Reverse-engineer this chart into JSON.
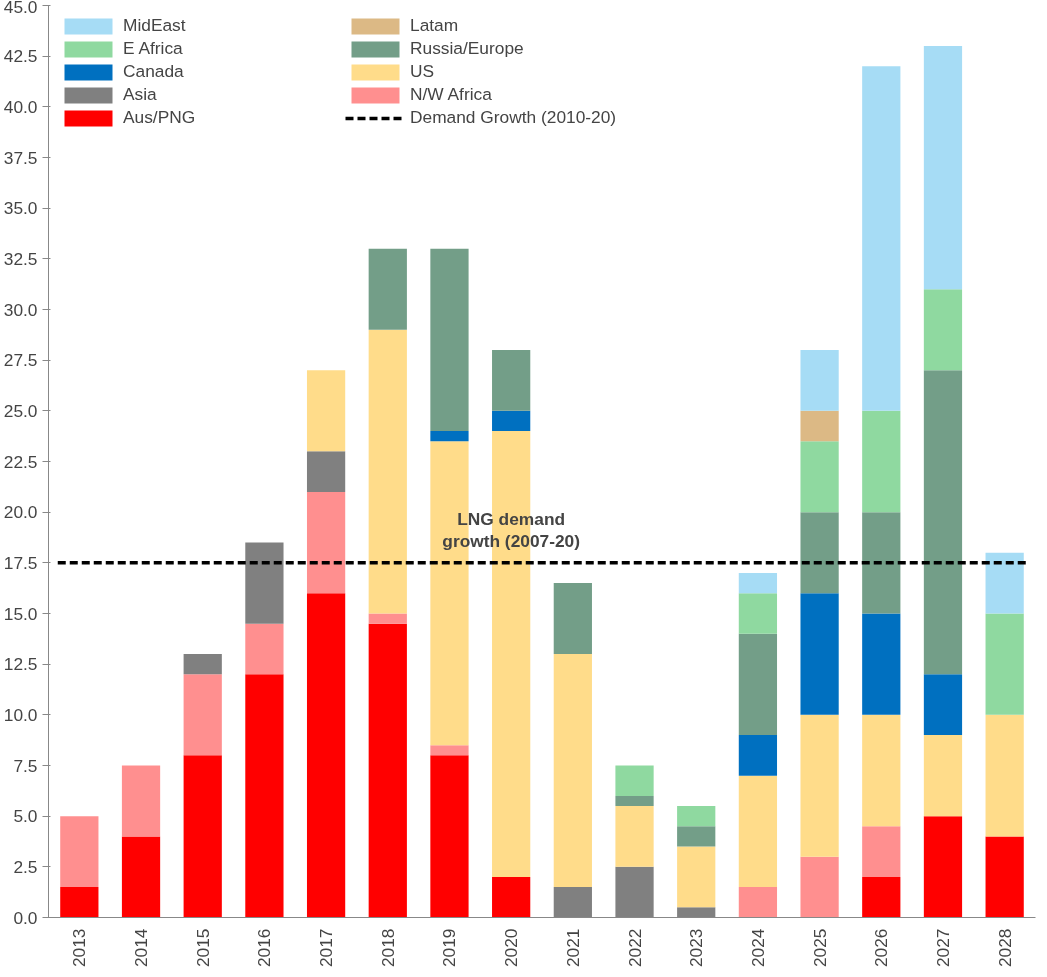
{
  "chart_data": {
    "type": "bar",
    "stacked": true,
    "categories": [
      "2013",
      "2014",
      "2015",
      "2016",
      "2017",
      "2018",
      "2019",
      "2020",
      "2021",
      "2022",
      "2023",
      "2024",
      "2025",
      "2026",
      "2027",
      "2028"
    ],
    "series": [
      {
        "name": "Aus/PNG",
        "color": "#ff0000",
        "values": [
          1.5,
          4,
          8,
          12,
          16,
          14.5,
          8,
          2,
          null,
          null,
          null,
          null,
          null,
          2,
          5,
          4
        ]
      },
      {
        "name": "N/W Africa",
        "color": "#ff8f8f",
        "values": [
          3.5,
          3.5,
          4,
          2.5,
          5,
          0.5,
          0.5,
          null,
          null,
          null,
          null,
          1.5,
          3,
          2.5,
          null,
          null
        ]
      },
      {
        "name": "Asia",
        "color": "#808080",
        "values": [
          null,
          null,
          1,
          4,
          2,
          null,
          null,
          null,
          1.5,
          2.5,
          0.5,
          null,
          null,
          null,
          null,
          null
        ]
      },
      {
        "name": "US",
        "color": "#ffdc8a",
        "values": [
          null,
          null,
          null,
          null,
          4,
          14,
          15,
          22,
          11.5,
          3,
          3,
          5.5,
          7,
          5.5,
          4,
          6
        ]
      },
      {
        "name": "Canada",
        "color": "#0070c0",
        "values": [
          null,
          null,
          null,
          null,
          null,
          null,
          0.5,
          1,
          null,
          null,
          null,
          2,
          6,
          5,
          3,
          null
        ]
      },
      {
        "name": "Russia/Europe",
        "color": "#739e88",
        "values": [
          null,
          null,
          null,
          null,
          null,
          4,
          9,
          3,
          3.5,
          0.5,
          1,
          5,
          4,
          5,
          15,
          null
        ]
      },
      {
        "name": "E Africa",
        "color": "#8fd9a0",
        "values": [
          null,
          null,
          null,
          null,
          null,
          null,
          null,
          null,
          null,
          1.5,
          1,
          2,
          3.5,
          5,
          4,
          5
        ]
      },
      {
        "name": "Latam",
        "color": "#dcb985",
        "values": [
          null,
          null,
          null,
          null,
          null,
          null,
          null,
          null,
          null,
          null,
          null,
          null,
          1.5,
          null,
          null,
          null
        ]
      },
      {
        "name": "MidEast",
        "color": "#a6dcf5",
        "values": [
          null,
          null,
          null,
          null,
          null,
          null,
          null,
          null,
          null,
          null,
          null,
          1,
          3,
          17,
          12,
          3
        ]
      }
    ],
    "ylim": [
      0,
      45
    ],
    "yticks": [
      {
        "value": 0,
        "label": "0.0"
      },
      {
        "value": 2.5,
        "label": "2.5"
      },
      {
        "value": 5,
        "label": "5.0"
      },
      {
        "value": 7.5,
        "label": "7.5"
      },
      {
        "value": 10,
        "label": "10.0"
      },
      {
        "value": 12.5,
        "label": "12.5"
      },
      {
        "value": 15,
        "label": "15.0"
      },
      {
        "value": 17.5,
        "label": "17.5"
      },
      {
        "value": 20,
        "label": "20.0"
      },
      {
        "value": 22.5,
        "label": "22.5"
      },
      {
        "value": 25,
        "label": "25.0"
      },
      {
        "value": 27.5,
        "label": "27.5"
      },
      {
        "value": 30,
        "label": "30.0"
      },
      {
        "value": 32.5,
        "label": "32.5"
      },
      {
        "value": 35,
        "label": "35.0"
      },
      {
        "value": 37.5,
        "label": "37.5"
      },
      {
        "value": 40,
        "label": "40.0"
      },
      {
        "value": 42.5,
        "label": "42.5"
      },
      {
        "value": 45,
        "label": "45.0"
      }
    ],
    "ref_lines": [
      {
        "axis": "y",
        "value": 17.5,
        "label": "Demand Growth (2010-20)",
        "color": "#000000",
        "line_style": "dashed"
      }
    ],
    "annotations": [
      {
        "text": "LNG demand growth (2007-20)",
        "x": "2020",
        "y": 17.5
      }
    ],
    "legend": "top left",
    "grid": false
  }
}
